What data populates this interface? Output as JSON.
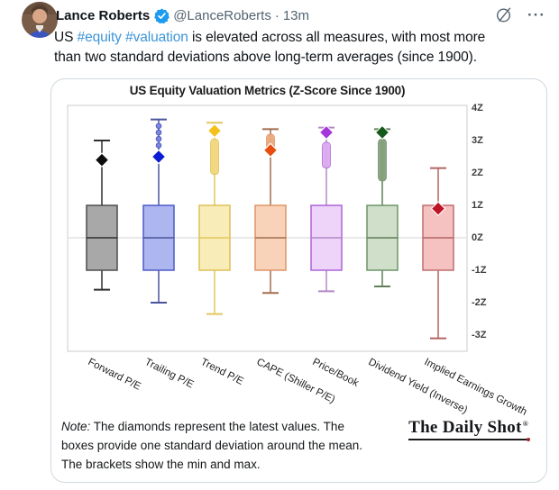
{
  "tweet": {
    "author_name": "Lance Roberts",
    "author_handle": "@LanceRoberts",
    "separator": "·",
    "timestamp": "13m",
    "text_pre": "US ",
    "hashtag1": "#equity",
    "hashtag_sep": " ",
    "hashtag2": "#valuation",
    "text_line1_rest": " is elevated across all measures, with most more",
    "text_line2": "than two standard deviations above long-term averages (since 1900).",
    "icons": {
      "grok": "grok-slashed-circle-icon",
      "more": "···"
    },
    "colors": {
      "link": "#3d95d8",
      "text": "#0f1419",
      "secondary": "#536471",
      "verified": "#1d9bf0"
    }
  },
  "chart_data": {
    "type": "boxplot",
    "title": "US Equity Valuation Metrics (Z-Score Since 1900)",
    "xlabel": "",
    "ylabel": "Z-Score",
    "y_ticks": [
      "4Z",
      "3Z",
      "2Z",
      "1Z",
      "0Z",
      "-1Z",
      "-2Z",
      "-3Z"
    ],
    "y_tick_values": [
      4,
      3,
      2,
      1,
      0,
      -1,
      -2,
      -3
    ],
    "ylim": [
      -3.55,
      4.1
    ],
    "grid": "horizontal line at 0Z only",
    "legend": "none",
    "categories": [
      "Forward P/E",
      "Trailing P/E",
      "Trend P/E",
      "CAPE (Shiller P/E)",
      "Price/Book",
      "Dividend Yield (Inverse)",
      "Implied Earnings Growth"
    ],
    "series": [
      {
        "name": "Forward P/E",
        "whisker_max": 3.0,
        "box_top": 1.0,
        "median": 0,
        "box_bottom": -1.0,
        "whisker_min": -1.6,
        "latest": 2.4,
        "outliers": [],
        "outlier_band": null,
        "colors": {
          "fill": "#a8a8a8",
          "edge": "#4d4d4d",
          "whisker": "#2f2f2f",
          "marker": "#0d0d0d",
          "band": "#8f8f8f"
        }
      },
      {
        "name": "Trailing P/E",
        "whisker_max": 3.65,
        "box_top": 1.0,
        "median": 0,
        "box_bottom": -1.0,
        "whisker_min": -2.0,
        "latest": 2.5,
        "outliers": [
          3.45,
          3.25,
          3.05,
          2.85
        ],
        "outlier_band": null,
        "colors": {
          "fill": "#adb6ee",
          "edge": "#4f5ac8",
          "whisker": "#4a549c",
          "marker": "#0a1cd4",
          "band": "#7d87dd"
        }
      },
      {
        "name": "Trend P/E",
        "whisker_max": 3.55,
        "box_top": 1.0,
        "median": 0,
        "box_bottom": -1.0,
        "whisker_min": -2.35,
        "latest": 3.3,
        "outliers": [],
        "outlier_band": [
          3.05,
          1.95
        ],
        "colors": {
          "fill": "#f8ecb8",
          "edge": "#dfc053",
          "whisker": "#e2c75f",
          "marker": "#f4c01c",
          "band": "#f1d87e"
        }
      },
      {
        "name": "CAPE (Shiller P/E)",
        "whisker_max": 3.35,
        "box_top": 1.0,
        "median": 0,
        "box_bottom": -1.0,
        "whisker_min": -1.7,
        "latest": 2.7,
        "outliers": [],
        "outlier_band": [
          3.2,
          2.55
        ],
        "colors": {
          "fill": "#f8d2b9",
          "edge": "#dd9466",
          "whisker": "#a06e50",
          "marker": "#e64d0f",
          "band": "#eba97c"
        }
      },
      {
        "name": "Price/Book",
        "whisker_max": 3.4,
        "box_top": 1.0,
        "median": 0,
        "box_bottom": -1.0,
        "whisker_min": -1.65,
        "latest": 3.25,
        "outliers": [],
        "outlier_band": [
          2.95,
          2.15
        ],
        "colors": {
          "fill": "#eed4f8",
          "edge": "#ad63d8",
          "whisker": "#b389c5",
          "marker": "#a436da",
          "band": "#dcabf0"
        }
      },
      {
        "name": "Dividend Yield (Inverse)",
        "whisker_max": 3.35,
        "box_top": 1.0,
        "median": 0,
        "box_bottom": -1.0,
        "whisker_min": -1.5,
        "latest": 3.25,
        "outliers": [],
        "outlier_band": [
          3.05,
          1.75
        ],
        "colors": {
          "fill": "#cfdfc9",
          "edge": "#6f9468",
          "whisker": "#5f7f58",
          "marker": "#145a1c",
          "band": "#83a07a"
        }
      },
      {
        "name": "Implied Earnings Growth",
        "whisker_max": 2.15,
        "box_top": 1.0,
        "median": 0,
        "box_bottom": -1.0,
        "whisker_min": -3.1,
        "latest": 0.9,
        "outliers": [],
        "outlier_band": null,
        "colors": {
          "fill": "#f5c1c1",
          "edge": "#c06f6f",
          "whisker": "#b36464",
          "marker": "#bd1326",
          "band": "#d98c8c"
        }
      }
    ]
  },
  "note": {
    "prefix": "Note:",
    "text": " The diamonds represent the latest values. The boxes provide one standard deviation around the mean. The brackets show the min and max."
  },
  "logo": {
    "text": "The Daily Shot",
    "registered": "®"
  }
}
